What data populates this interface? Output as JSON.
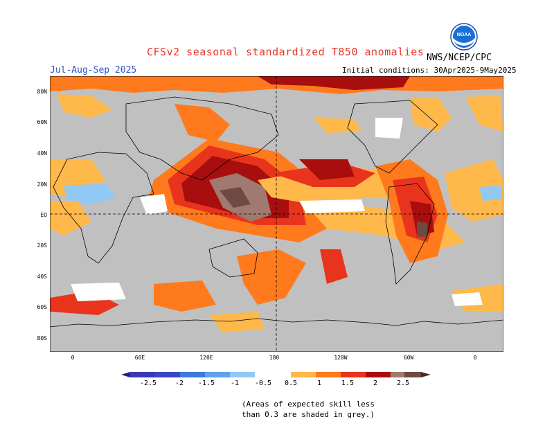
{
  "title": "CFSv2 seasonal standardized T850 anomalies",
  "season": "Jul-Aug-Sep 2025",
  "initial_conditions": "Initial conditions: 30Apr2025-9May2025",
  "agency": "NWS/NCEP/CPC",
  "logo_text": "NOAA",
  "colors": {
    "grey_skill_mask": "#c0c0c0",
    "neg_2_5": "#2a1a8c",
    "neg_2": "#3a46c8",
    "neg_1_5": "#3f78dc",
    "neg_1": "#5fa2ea",
    "neg_0_5": "#92c8f4",
    "pos_0_5": "#ffb84a",
    "pos_1": "#ff7a1c",
    "pos_1_5": "#e8341c",
    "pos_2": "#a80e0e",
    "pos_2_5": "#a07a70",
    "pos_max": "#6e4a42"
  },
  "axes": {
    "lat_labels": [
      "80N",
      "60N",
      "40N",
      "20N",
      "EQ",
      "20S",
      "40S",
      "60S",
      "80S"
    ],
    "lon_labels": [
      "0",
      "60E",
      "120E",
      "180",
      "120W",
      "60W",
      "0"
    ]
  },
  "colorbar": {
    "labels": [
      "-2.5",
      "-2",
      "-1.5",
      "-1",
      "-0.5",
      "0.5",
      "1",
      "1.5",
      "2",
      "2.5"
    ]
  },
  "note": [
    "(Areas of expected skill less",
    "than 0.3 are shaded in grey.)"
  ]
}
